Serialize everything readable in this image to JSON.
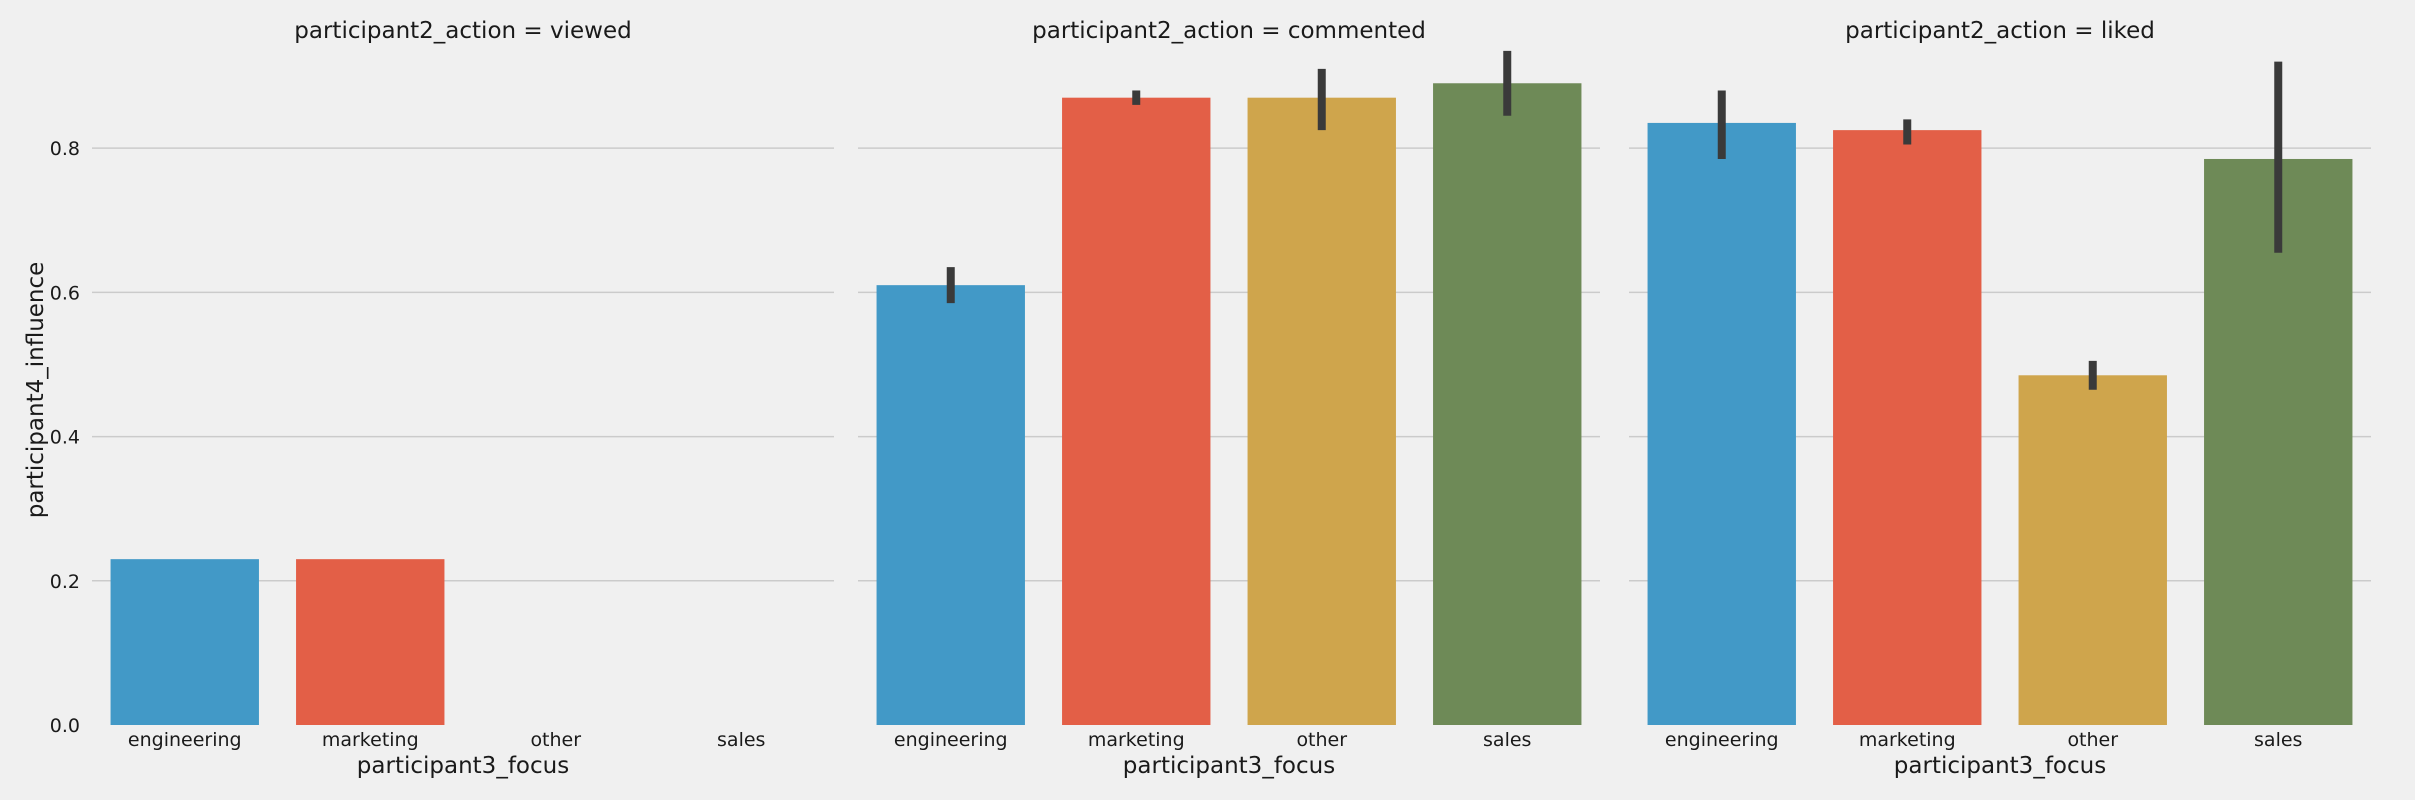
{
  "chart_data": {
    "type": "bar",
    "ylabel": "participant4_influence",
    "ylim": [
      0,
      0.95
    ],
    "yticks": [
      "0.0",
      "0.2",
      "0.4",
      "0.6",
      "0.8"
    ],
    "grid": true,
    "shared_y": true,
    "colors": [
      "#4299c7",
      "#e35f47",
      "#cfa54c",
      "#6e8a57"
    ],
    "errorbar_color": "#3a3a3a",
    "panels": [
      {
        "title": "participant2_action = viewed",
        "xlabel": "participant3_focus",
        "categories": [
          "engineering",
          "marketing",
          "other",
          "sales"
        ],
        "values": [
          0.23,
          0.23,
          null,
          null
        ],
        "ci_low": [
          null,
          null,
          null,
          null
        ],
        "ci_high": [
          null,
          null,
          null,
          null
        ]
      },
      {
        "title": "participant2_action = commented",
        "xlabel": "participant3_focus",
        "categories": [
          "engineering",
          "marketing",
          "other",
          "sales"
        ],
        "values": [
          0.61,
          0.87,
          0.87,
          0.89
        ],
        "ci_low": [
          0.585,
          0.86,
          0.825,
          0.845
        ],
        "ci_high": [
          0.635,
          0.88,
          0.91,
          0.935
        ]
      },
      {
        "title": "participant2_action = liked",
        "xlabel": "participant3_focus",
        "categories": [
          "engineering",
          "marketing",
          "other",
          "sales"
        ],
        "values": [
          0.835,
          0.825,
          0.485,
          0.785
        ],
        "ci_low": [
          0.785,
          0.805,
          0.465,
          0.655
        ],
        "ci_high": [
          0.88,
          0.84,
          0.505,
          0.92
        ]
      }
    ]
  }
}
